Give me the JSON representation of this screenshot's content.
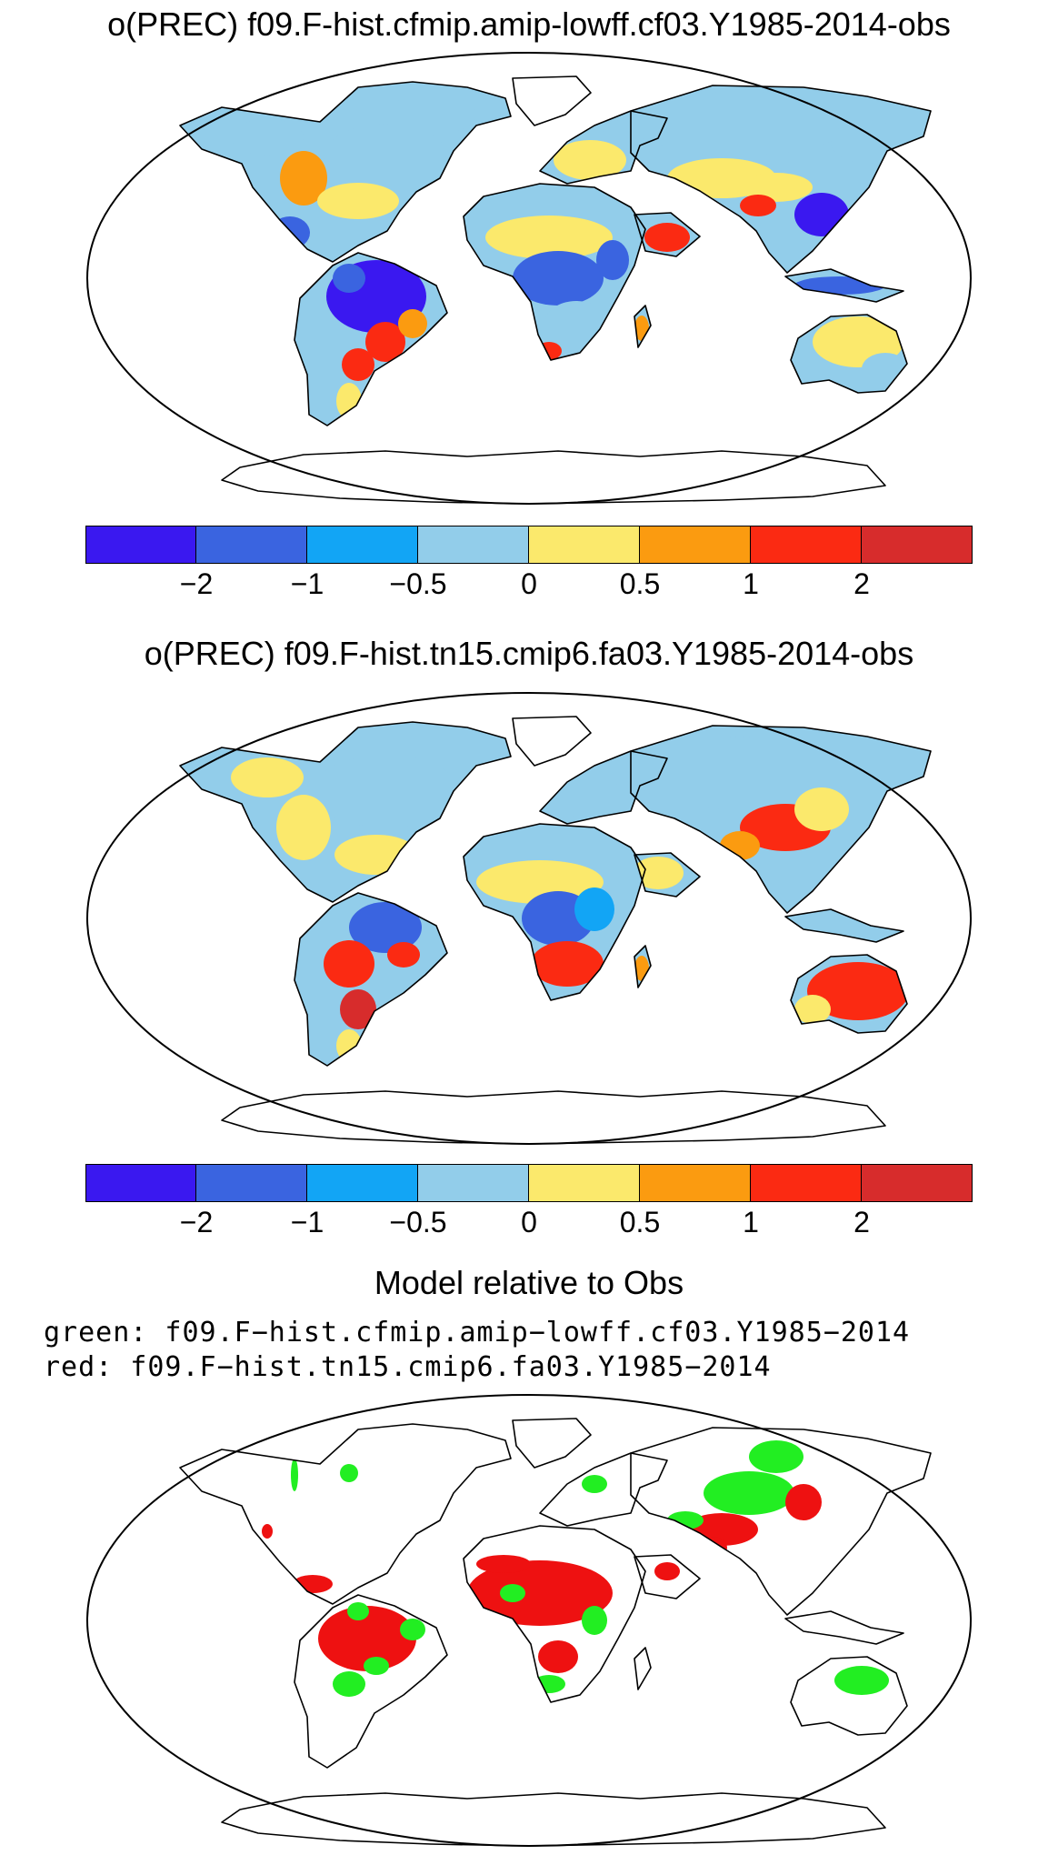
{
  "panels": [
    {
      "title": "o(PREC) f09.F-hist.cfmip.amip-lowff.cf03.Y1985-2014-obs"
    },
    {
      "title": "o(PREC) f09.F-hist.tn15.cmip6.fa03.Y1985-2014-obs"
    }
  ],
  "colorbar": {
    "colors": [
      "#3a18f0",
      "#3a64e0",
      "#12a5f5",
      "#92cdea",
      "#fbe96c",
      "#fb9b10",
      "#fb2a12",
      "#d72c2c"
    ],
    "tick_labels": [
      "−2",
      "−1",
      "−0.5",
      "0",
      "0.5",
      "1",
      "2"
    ]
  },
  "comparison": {
    "title": "Model relative to Obs",
    "green_legend": "green: f09.F−hist.cfmip.amip−lowff.cf03.Y1985−2014",
    "red_legend": "red: f09.F−hist.tn15.cmip6.fa03.Y1985−2014",
    "green_color": "#22ee22",
    "red_color": "#ee1111"
  },
  "land_color": "#ffffff",
  "coast_color": "#000000"
}
